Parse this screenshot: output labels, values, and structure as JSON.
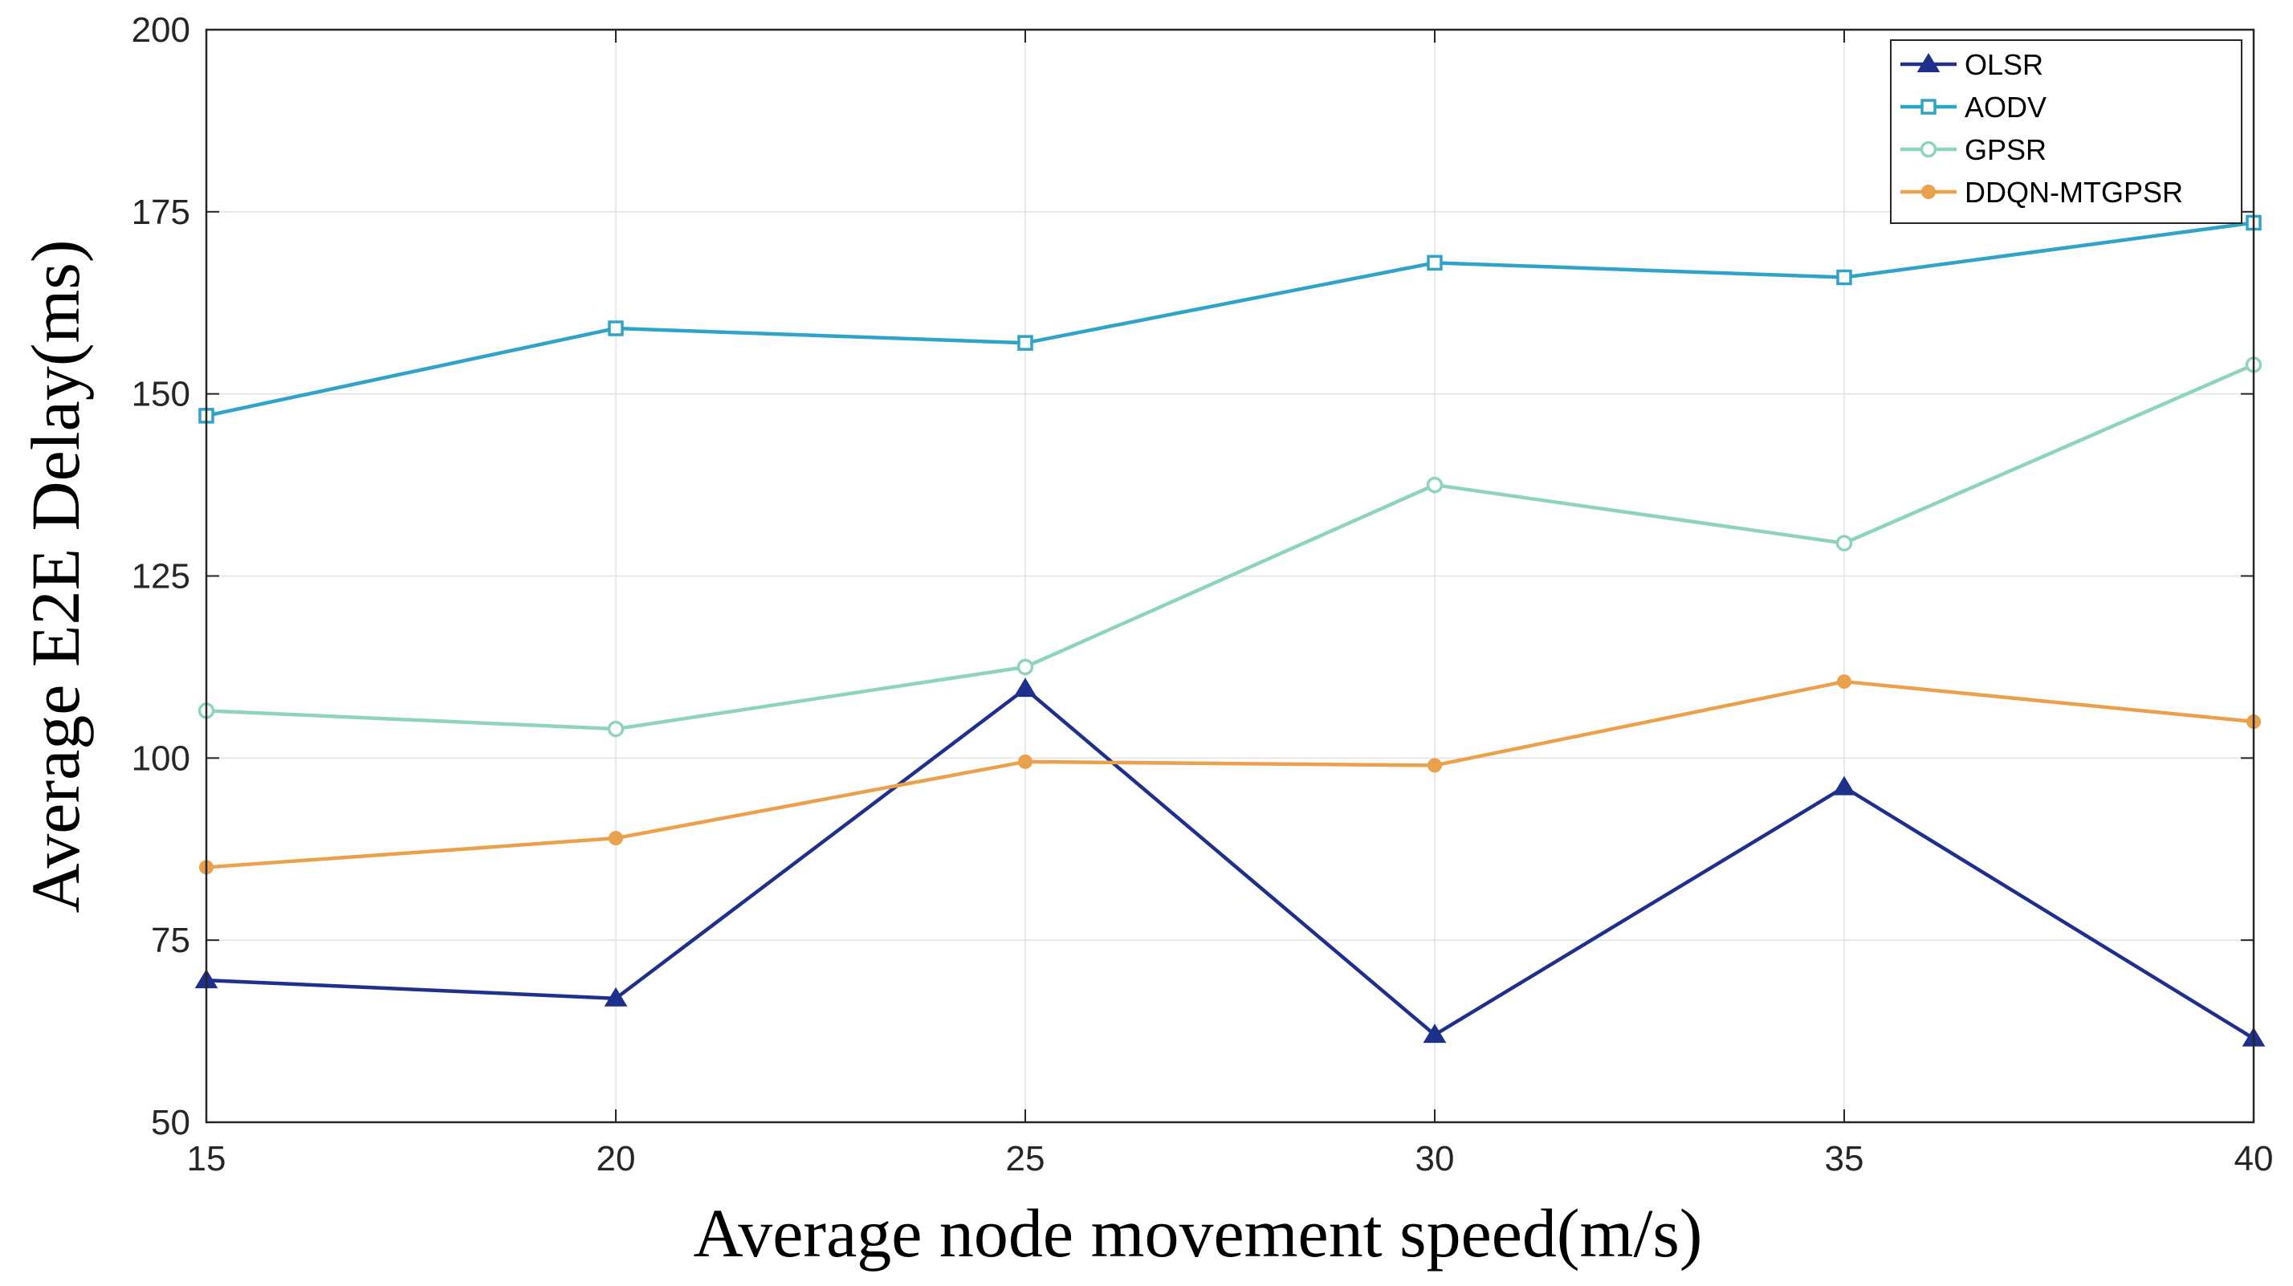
{
  "chart_data": {
    "type": "line",
    "title": "",
    "xlabel": "Average node movement speed(m/s)",
    "ylabel": "Average E2E Delay(ms)",
    "x": [
      15,
      20,
      25,
      30,
      35,
      40
    ],
    "xlim": [
      15,
      40
    ],
    "ylim": [
      50,
      200
    ],
    "xticks": [
      15,
      20,
      25,
      30,
      35,
      40
    ],
    "yticks": [
      50,
      75,
      100,
      125,
      150,
      175,
      200
    ],
    "grid": true,
    "legend_position": "top-right",
    "series": [
      {
        "name": "OLSR",
        "color": "#1f2f8c",
        "marker": "triangle",
        "values": [
          69.5,
          67,
          109.5,
          62,
          96,
          61.5
        ]
      },
      {
        "name": "AODV",
        "color": "#2fa3c8",
        "marker": "square",
        "values": [
          147,
          159,
          157,
          168,
          166,
          173.5
        ]
      },
      {
        "name": "GPSR",
        "color": "#8ed4b8",
        "marker": "circle",
        "values": [
          106.5,
          104,
          112.5,
          137.5,
          129.5,
          154
        ]
      },
      {
        "name": "DDQN-MTGPSR",
        "color": "#e9a14c",
        "marker": "dot",
        "values": [
          85,
          89,
          99.5,
          99,
          110.5,
          105
        ]
      }
    ]
  }
}
